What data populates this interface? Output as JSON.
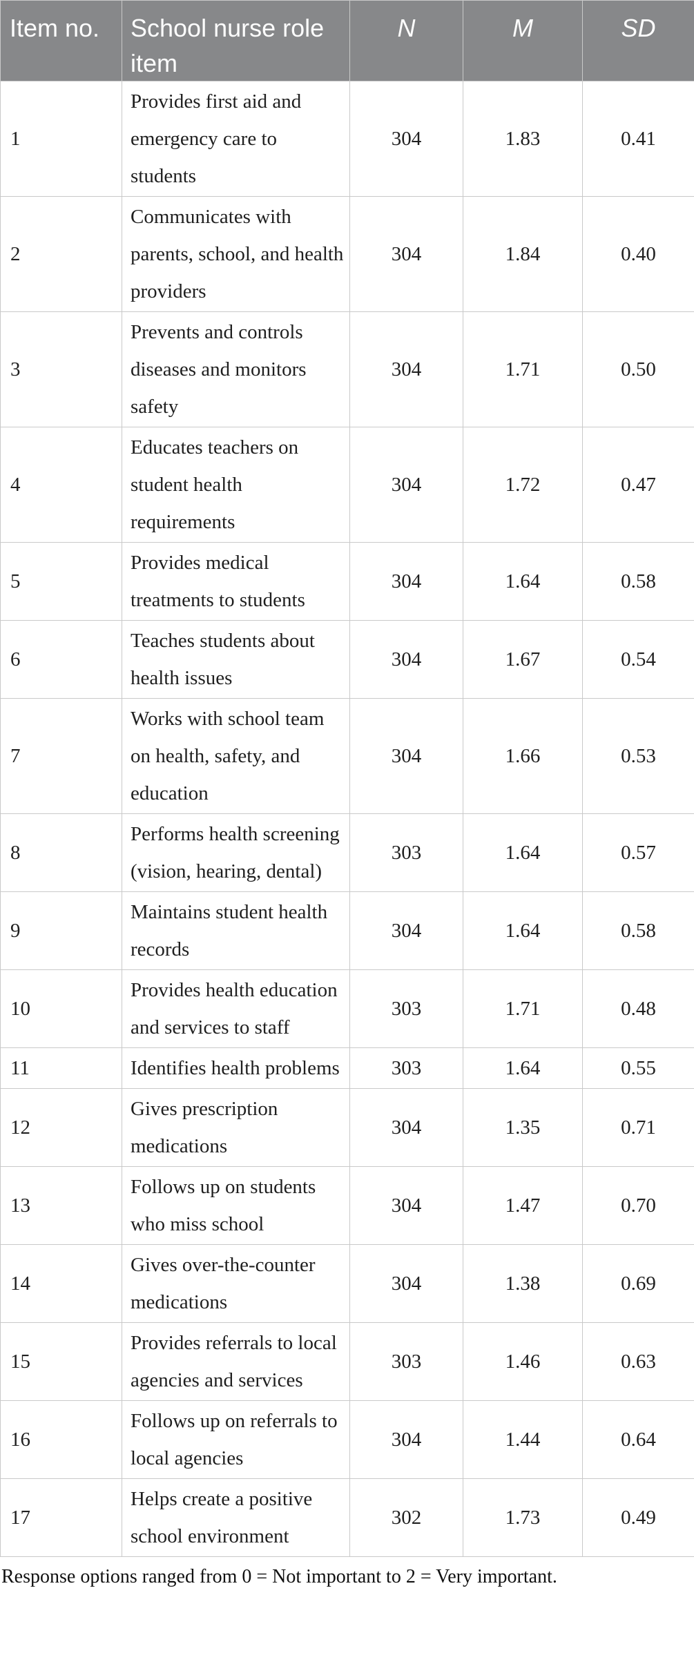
{
  "table": {
    "header": {
      "item_no": "Item no.",
      "role_item": "School nurse role item",
      "n": "N",
      "m": "M",
      "sd": "SD"
    },
    "rows": [
      {
        "item_no": "1",
        "role_item": "Provides first aid and emergency care to students",
        "n": "304",
        "m": "1.83",
        "sd": "0.41"
      },
      {
        "item_no": "2",
        "role_item": "Communicates with parents, school, and health providers",
        "n": "304",
        "m": "1.84",
        "sd": "0.40"
      },
      {
        "item_no": "3",
        "role_item": "Prevents and controls diseases and monitors safety",
        "n": "304",
        "m": "1.71",
        "sd": "0.50"
      },
      {
        "item_no": "4",
        "role_item": "Educates teachers on student health requirements",
        "n": "304",
        "m": "1.72",
        "sd": "0.47"
      },
      {
        "item_no": "5",
        "role_item": "Provides medical treatments to students",
        "n": "304",
        "m": "1.64",
        "sd": "0.58"
      },
      {
        "item_no": "6",
        "role_item": "Teaches students about health issues",
        "n": "304",
        "m": "1.67",
        "sd": "0.54"
      },
      {
        "item_no": "7",
        "role_item": "Works with school team on health, safety, and education",
        "n": "304",
        "m": "1.66",
        "sd": "0.53"
      },
      {
        "item_no": "8",
        "role_item": "Performs health screening (vision, hearing, dental)",
        "n": "303",
        "m": "1.64",
        "sd": "0.57"
      },
      {
        "item_no": "9",
        "role_item": "Maintains student health records",
        "n": "304",
        "m": "1.64",
        "sd": "0.58"
      },
      {
        "item_no": "10",
        "role_item": "Provides health education and services to staff",
        "n": "303",
        "m": "1.71",
        "sd": "0.48"
      },
      {
        "item_no": "11",
        "role_item": "Identifies health problems",
        "n": "303",
        "m": "1.64",
        "sd": "0.55"
      },
      {
        "item_no": "12",
        "role_item": "Gives prescription medications",
        "n": "304",
        "m": "1.35",
        "sd": "0.71"
      },
      {
        "item_no": "13",
        "role_item": "Follows up on students who miss school",
        "n": "304",
        "m": "1.47",
        "sd": "0.70"
      },
      {
        "item_no": "14",
        "role_item": "Gives over-the-counter medications",
        "n": "304",
        "m": "1.38",
        "sd": "0.69"
      },
      {
        "item_no": "15",
        "role_item": "Provides referrals to local agencies and services",
        "n": "303",
        "m": "1.46",
        "sd": "0.63"
      },
      {
        "item_no": "16",
        "role_item": "Follows up on referrals to local agencies",
        "n": "304",
        "m": "1.44",
        "sd": "0.64"
      },
      {
        "item_no": "17",
        "role_item": "Helps create a positive school environment",
        "n": "302",
        "m": "1.73",
        "sd": "0.49"
      }
    ],
    "footnote": "Response options ranged from 0 = Not important to 2 = Very important."
  },
  "colors": {
    "header_bg": "#87888a",
    "header_text": "#fdfdfd",
    "body_text": "#1f1f1f",
    "border": "#c9c9c9",
    "page_bg": "#ffffff"
  }
}
